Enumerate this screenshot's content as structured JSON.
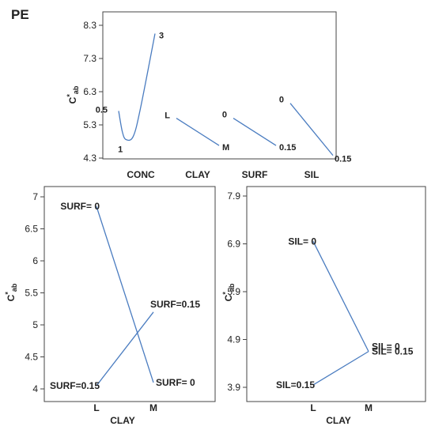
{
  "figure_label": "PE",
  "chart_data": [
    {
      "id": "main-effects",
      "type": "line",
      "ylabel": "C*ab",
      "ylabel_base": "C",
      "ylabel_sup": "*",
      "ylabel_sub": "ab",
      "yticks": [
        "4.3",
        "5.3",
        "6.3",
        "7.3",
        "8.3"
      ],
      "ylim": [
        4.3,
        8.3
      ],
      "groups": [
        {
          "name": "CONC",
          "points": [
            {
              "x": 0.5,
              "y": 5.72,
              "label": "0.5"
            },
            {
              "x": 0.75,
              "y": 5.1
            },
            {
              "x": 1,
              "y": 4.86,
              "label": "1"
            },
            {
              "x": 1.5,
              "y": 4.95
            },
            {
              "x": 2,
              "y": 5.8
            },
            {
              "x": 3,
              "y": 8.05,
              "label": "3"
            }
          ]
        },
        {
          "name": "CLAY",
          "points": [
            {
              "x": "L",
              "y": 5.5,
              "label": "L"
            },
            {
              "x": "M",
              "y": 4.68,
              "label": "M"
            }
          ]
        },
        {
          "name": "SURF",
          "points": [
            {
              "x": 0,
              "y": 5.5,
              "label": "0"
            },
            {
              "x": 0.15,
              "y": 4.68,
              "label": "0.15"
            }
          ]
        },
        {
          "name": "SIL",
          "points": [
            {
              "x": 0,
              "y": 5.95,
              "label": "0"
            },
            {
              "x": 0.15,
              "y": 4.38,
              "label": "0.15"
            }
          ]
        }
      ]
    },
    {
      "id": "clay-surf-interaction",
      "type": "line",
      "xlabel": "CLAY",
      "ylabel": "C*ab",
      "ylabel_base": "C",
      "ylabel_sup": "*",
      "ylabel_sub": "ab",
      "categories": [
        "L",
        "M"
      ],
      "yticks": [
        "4",
        "4.5",
        "5",
        "5.5",
        "6",
        "6.5",
        "7"
      ],
      "ylim": [
        4,
        7
      ],
      "series": [
        {
          "label_start": "SURF= 0",
          "label_end": "SURF= 0",
          "values": [
            6.85,
            4.1
          ]
        },
        {
          "label_start": "SURF=0.15",
          "label_end": "SURF=0.15",
          "values": [
            4.05,
            5.2
          ]
        }
      ]
    },
    {
      "id": "clay-sil-interaction",
      "type": "line",
      "xlabel": "CLAY",
      "ylabel": "C*ab",
      "ylabel_base": "C",
      "ylabel_sup": "*",
      "ylabel_sub": "ab",
      "categories": [
        "L",
        "M"
      ],
      "yticks": [
        "3.9",
        "4.9",
        "5.9",
        "6.9",
        "7.9"
      ],
      "ylim": [
        3.9,
        7.9
      ],
      "series": [
        {
          "label_start": "SIL= 0",
          "label_end": "SIL= 0",
          "values": [
            6.95,
            4.65
          ]
        },
        {
          "label_start": "SIL=0.15",
          "label_end": "SIL= 0.15",
          "values": [
            3.95,
            4.65
          ]
        }
      ]
    }
  ]
}
